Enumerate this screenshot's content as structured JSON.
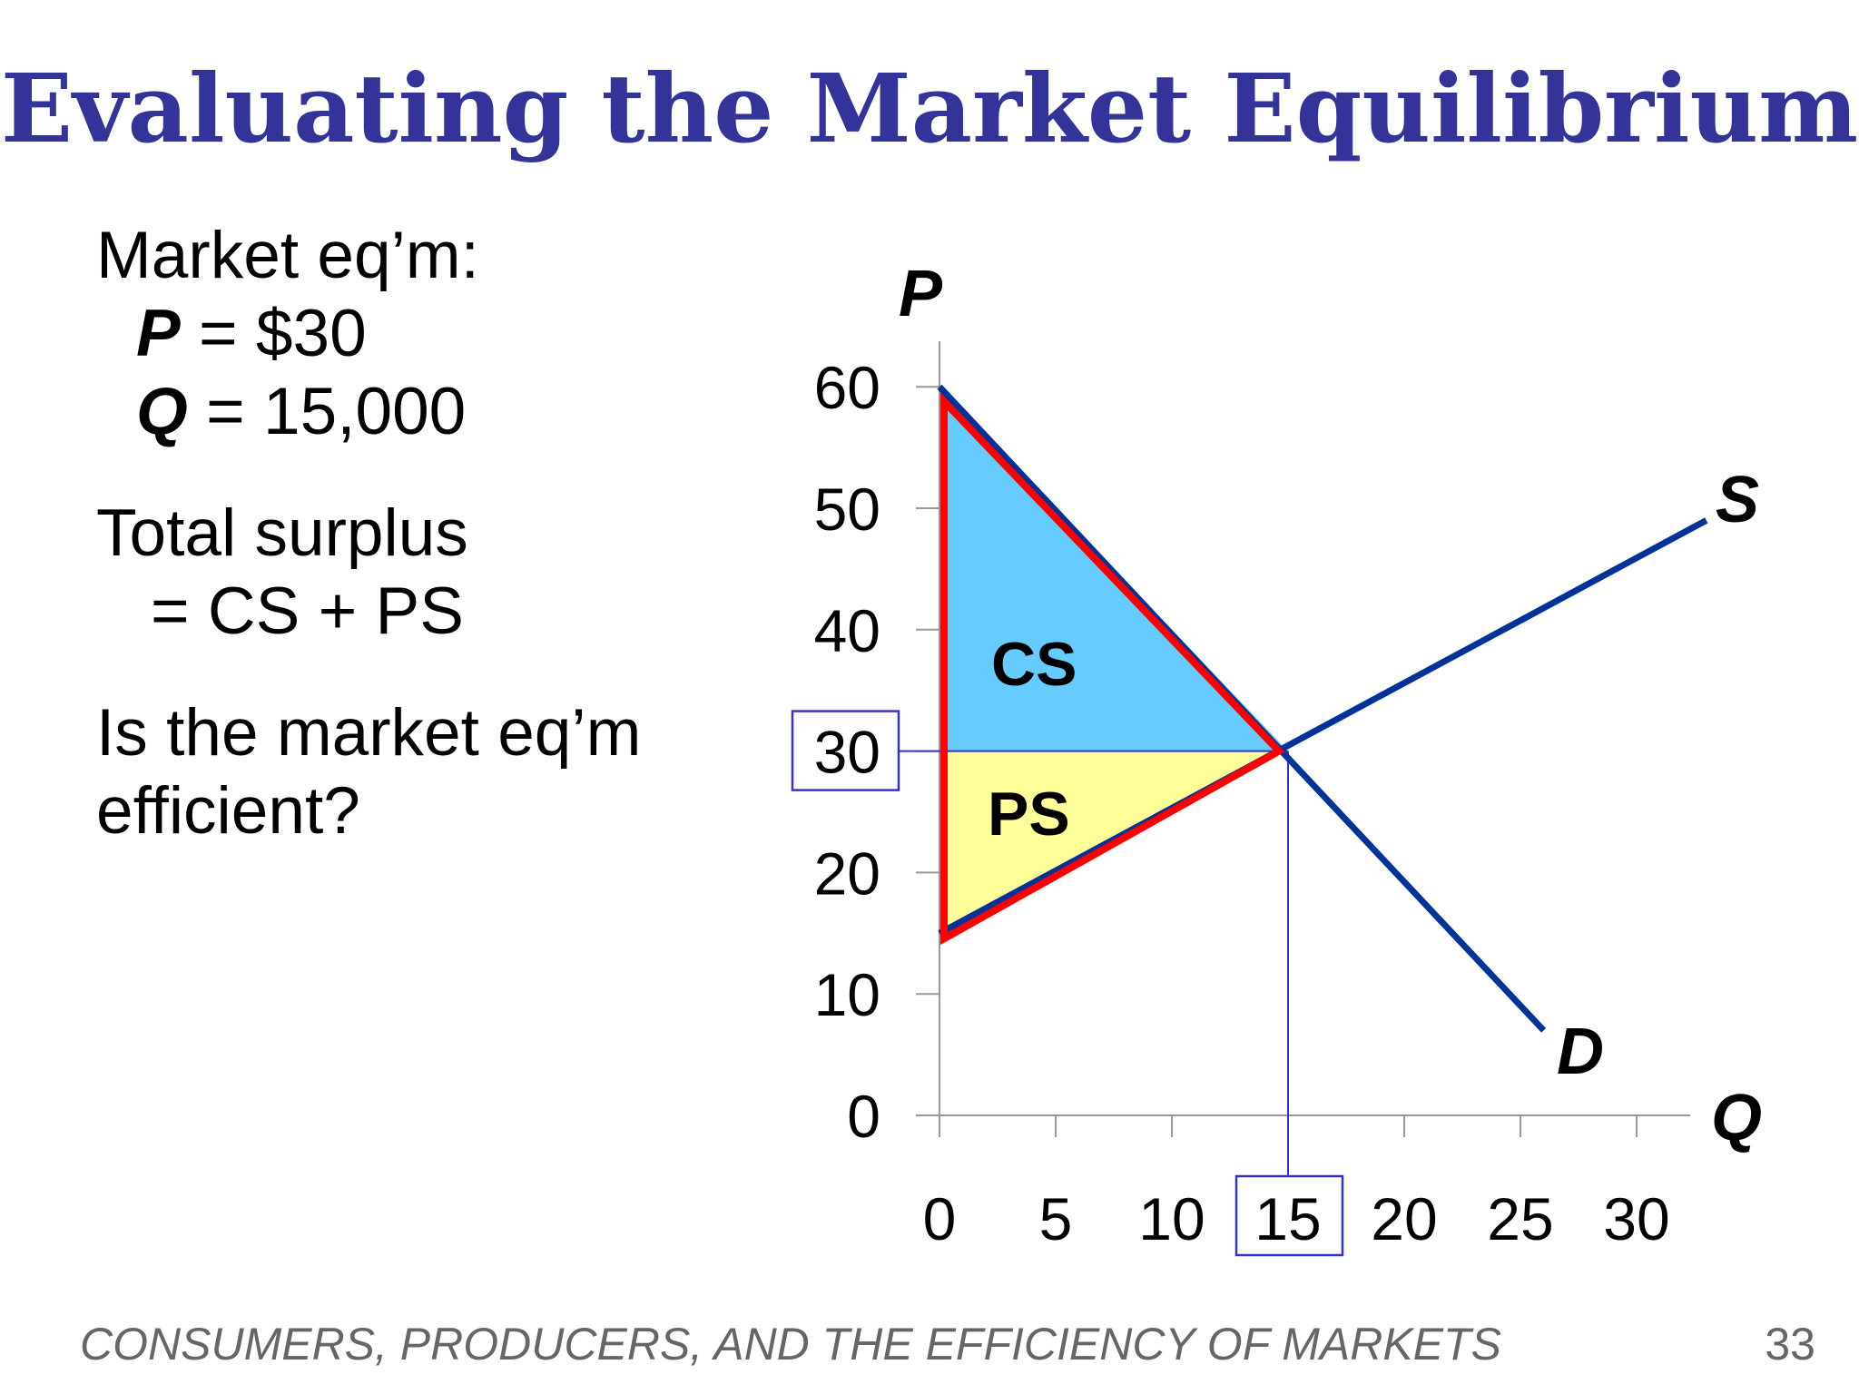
{
  "slide": {
    "title": "Evaluating the Market Equilibrium",
    "footer": "CONSUMERS, PRODUCERS, AND THE EFFICIENCY OF MARKETS",
    "page_number": "33"
  },
  "left_panel": {
    "line1": "Market eq’m:",
    "price_symbol": "P",
    "price_value": " = $30",
    "quantity_symbol": "Q",
    "quantity_value": " = 15,000",
    "surplus_line1": "Total surplus",
    "surplus_line2": "=  CS + PS",
    "question_line1": "Is the market eq’m",
    "question_line2": "efficient?"
  },
  "chart_data": {
    "type": "line",
    "xlabel": "Q",
    "ylabel": "P",
    "xlim": [
      0,
      30
    ],
    "ylim": [
      0,
      60
    ],
    "x_ticks": [
      0,
      5,
      10,
      15,
      20,
      25,
      30
    ],
    "y_ticks": [
      0,
      10,
      20,
      30,
      40,
      50,
      60
    ],
    "series": [
      {
        "name": "D",
        "points": [
          [
            0,
            60
          ],
          [
            26,
            7
          ]
        ]
      },
      {
        "name": "S",
        "points": [
          [
            0,
            15
          ],
          [
            33,
            49
          ]
        ]
      }
    ],
    "equilibrium": {
      "x": 15,
      "y": 30
    },
    "highlighted_ticks": {
      "x": 15,
      "y": 30
    },
    "regions": [
      {
        "name": "CS",
        "color": "#66CCFF"
      },
      {
        "name": "PS",
        "color": "#FFFF99"
      }
    ],
    "colors": {
      "curves": "#003399",
      "outline": "#FF0000",
      "guides": "#3333CC",
      "axes": "#999999"
    },
    "grid": false
  }
}
